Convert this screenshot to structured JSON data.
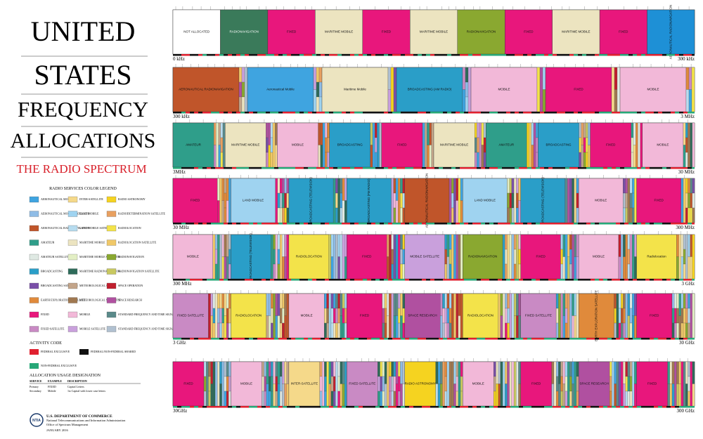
{
  "title_lines": [
    "UNITED",
    "STATES",
    "FREQUENCY",
    "ALLOCATIONS"
  ],
  "subtitle": "THE RADIO SPECTRUM",
  "legend": {
    "title": "RADIO SERVICES COLOR LEGEND",
    "items": [
      {
        "label": "AERONAUTICAL MOBILE",
        "color": "#3fa4e0"
      },
      {
        "label": "AERONAUTICAL MOBILE SATELLITE",
        "color": "#8fbce6"
      },
      {
        "label": "AERONAUTICAL RADIONAVIGATION",
        "color": "#c0552a"
      },
      {
        "label": "AMATEUR",
        "color": "#2f9e8a"
      },
      {
        "label": "AMATEUR SATELLITE",
        "color": "#dfe9e3"
      },
      {
        "label": "BROADCASTING",
        "color": "#2a9ec8"
      },
      {
        "label": "BROADCASTING SATELLITE",
        "color": "#7a4fa8"
      },
      {
        "label": "EARTH EXPLORATION SATELLITE",
        "color": "#e08a3b"
      },
      {
        "label": "FIXED",
        "color": "#e8177c"
      },
      {
        "label": "FIXED SATELLITE",
        "color": "#c98ac4"
      },
      {
        "label": "INTER-SATELLITE",
        "color": "#f5d98a"
      },
      {
        "label": "LAND MOBILE",
        "color": "#9fd3f0"
      },
      {
        "label": "LAND MOBILE SATELLITE",
        "color": "#b7dcef"
      },
      {
        "label": "MARITIME MOBILE",
        "color": "#ece4c0"
      },
      {
        "label": "MARITIME MOBILE SATELLITE",
        "color": "#e3efc4"
      },
      {
        "label": "MARITIME RADIONAVIGATION",
        "color": "#2e6b5a"
      },
      {
        "label": "METEOROLOGICAL AIDS",
        "color": "#c3a58a"
      },
      {
        "label": "METEOROLOGICAL SATELLITE",
        "color": "#a07850"
      },
      {
        "label": "MOBILE",
        "color": "#f2b8d8"
      },
      {
        "label": "MOBILE SATELLITE",
        "color": "#c9a0dc"
      },
      {
        "label": "RADIO ASTRONOMY",
        "color": "#f5d320"
      },
      {
        "label": "RADIODETERMINATION SATELLITE",
        "color": "#e8a060"
      },
      {
        "label": "RADIOLOCATION",
        "color": "#f3e34a"
      },
      {
        "label": "RADIOLOCATION SATELLITE",
        "color": "#f0c868"
      },
      {
        "label": "RADIONAVIGATION",
        "color": "#8aa830"
      },
      {
        "label": "RADIONAVIGATION SATELLITE",
        "color": "#c8c860"
      },
      {
        "label": "SPACE OPERATION",
        "color": "#c01f2e"
      },
      {
        "label": "SPACE RESEARCH",
        "color": "#b050a0"
      },
      {
        "label": "STANDARD FREQUENCY AND TIME SIGNAL",
        "color": "#5a8a8a"
      },
      {
        "label": "STANDARD FREQUENCY AND TIME SIGNAL SATELLITE",
        "color": "#b0c0d0"
      }
    ]
  },
  "activity_code": {
    "title": "ACTIVITY CODE",
    "items": [
      {
        "label": "FEDERAL EXCLUSIVE",
        "color": "#e0202f"
      },
      {
        "label": "FEDERAL/NON-FEDERAL SHARED",
        "color": "#111111"
      },
      {
        "label": "NON-FEDERAL EXCLUSIVE",
        "color": "#27a878"
      }
    ]
  },
  "usage": {
    "title": "ALLOCATION USAGE DESIGNATION",
    "header": [
      "SERVICE",
      "EXAMPLE",
      "DESCRIPTION"
    ],
    "rows": [
      [
        "Primary",
        "FIXED",
        "Capital Letters"
      ],
      [
        "Secondary",
        "Mobile",
        "1st Capital with lower case letters"
      ]
    ]
  },
  "footer": {
    "logo": "NTIA",
    "lines": [
      "U.S. DEPARTMENT OF COMMERCE",
      "National Telecommunications and Information Administration",
      "Office of Spectrum Management"
    ],
    "date": "JANUARY 2016"
  },
  "bands": [
    {
      "start": "0 kHz",
      "end": "300 kHz",
      "blocks": [
        {
          "label": "NOT ALLOCATED",
          "color": "#ffffff"
        },
        {
          "label": "RADIONAVIGATION",
          "color": "#3a7a5a"
        },
        {
          "label": "FIXED",
          "color": "#e8177c"
        },
        {
          "label": "MARITIME MOBILE",
          "color": "#ece4c0"
        },
        {
          "label": "FIXED",
          "color": "#e8177c"
        },
        {
          "label": "MARITIME MOBILE",
          "color": "#ece4c0"
        },
        {
          "label": "RADIONAVIGATION",
          "color": "#8aa830"
        },
        {
          "label": "FIXED",
          "color": "#e8177c"
        },
        {
          "label": "MARITIME MOBILE",
          "color": "#ece4c0"
        },
        {
          "label": "FIXED",
          "color": "#e8177c"
        },
        {
          "label": "AERONAUTICAL RADIONAVIGATION",
          "color": "#1e90d6"
        }
      ]
    },
    {
      "start": "300 kHz",
      "end": "3 MHz",
      "blocks": [
        {
          "label": "AERONAUTICAL RADIONAVIGATION",
          "color": "#c0552a"
        },
        {
          "label": "Aeronautical Mobile",
          "color": "#3fa4e0"
        },
        {
          "label": "Maritime Mobile",
          "color": "#ece4c0"
        },
        {
          "label": "BROADCASTING (AM RADIO)",
          "color": "#2a9ec8"
        },
        {
          "label": "MOBILE",
          "color": "#f2b8d8"
        },
        {
          "label": "FIXED",
          "color": "#e8177c"
        },
        {
          "label": "MOBILE",
          "color": "#f2b8d8"
        }
      ]
    },
    {
      "start": "3MHz",
      "end": "30 MHz",
      "blocks": [
        {
          "label": "AMATEUR",
          "color": "#2f9e8a"
        },
        {
          "label": "MARITIME MOBILE",
          "color": "#ece4c0"
        },
        {
          "label": "MOBILE",
          "color": "#f2b8d8"
        },
        {
          "label": "BROADCASTING",
          "color": "#2a9ec8"
        },
        {
          "label": "FIXED",
          "color": "#e8177c"
        },
        {
          "label": "MARITIME MOBILE",
          "color": "#ece4c0"
        },
        {
          "label": "AMATEUR",
          "color": "#2f9e8a"
        },
        {
          "label": "BROADCASTING",
          "color": "#2a9ec8"
        },
        {
          "label": "FIXED",
          "color": "#e8177c"
        },
        {
          "label": "MOBILE",
          "color": "#f2b8d8"
        }
      ]
    },
    {
      "start": "30 MHz",
      "end": "300 MHz",
      "blocks": [
        {
          "label": "FIXED",
          "color": "#e8177c"
        },
        {
          "label": "LAND MOBILE",
          "color": "#9fd3f0"
        },
        {
          "label": "BROADCASTING (TELEVISION)",
          "color": "#2a9ec8"
        },
        {
          "label": "BROADCASTING (FM RADIO)",
          "color": "#2a9ec8"
        },
        {
          "label": "AERONAUTICAL RADIONAVIGATION",
          "color": "#c0552a"
        },
        {
          "label": "LAND MOBILE",
          "color": "#9fd3f0"
        },
        {
          "label": "BROADCASTING (TELEVISION)",
          "color": "#2a9ec8"
        },
        {
          "label": "MOBILE",
          "color": "#f2b8d8"
        },
        {
          "label": "FIXED",
          "color": "#e8177c"
        }
      ]
    },
    {
      "start": "300 MHz",
      "end": "3 GHz",
      "blocks": [
        {
          "label": "MOBILE",
          "color": "#f2b8d8"
        },
        {
          "label": "BROADCASTING (TELEVISION)",
          "color": "#2a9ec8"
        },
        {
          "label": "RADIOLOCATION",
          "color": "#f3e34a"
        },
        {
          "label": "FIXED",
          "color": "#e8177c"
        },
        {
          "label": "MOBILE SATELLITE",
          "color": "#c9a0dc"
        },
        {
          "label": "RADIONAVIGATION",
          "color": "#8aa830"
        },
        {
          "label": "FIXED",
          "color": "#e8177c"
        },
        {
          "label": "MOBILE",
          "color": "#f2b8d8"
        },
        {
          "label": "Radiolocation",
          "color": "#f3e34a"
        }
      ]
    },
    {
      "start": "3 GHz",
      "end": "30 GHz",
      "blocks": [
        {
          "label": "FIXED SATELLITE",
          "color": "#c98ac4"
        },
        {
          "label": "RADIOLOCATION",
          "color": "#f3e34a"
        },
        {
          "label": "MOBILE",
          "color": "#f2b8d8"
        },
        {
          "label": "FIXED",
          "color": "#e8177c"
        },
        {
          "label": "SPACE RESEARCH",
          "color": "#b050a0"
        },
        {
          "label": "RADIOLOCATION",
          "color": "#f3e34a"
        },
        {
          "label": "FIXED SATELLITE",
          "color": "#c98ac4"
        },
        {
          "label": "EARTH EXPLORATION SATELLITE",
          "color": "#e08a3b"
        },
        {
          "label": "FIXED",
          "color": "#e8177c"
        }
      ]
    },
    {
      "start": "30GHz",
      "end": "300 GHz",
      "blocks": [
        {
          "label": "FIXED",
          "color": "#e8177c"
        },
        {
          "label": "MOBILE",
          "color": "#f2b8d8"
        },
        {
          "label": "INTER-SATELLITE",
          "color": "#f5d98a"
        },
        {
          "label": "FIXED SATELLITE",
          "color": "#c98ac4"
        },
        {
          "label": "RADIO ASTRONOMY",
          "color": "#f5d320"
        },
        {
          "label": "MOBILE",
          "color": "#f2b8d8"
        },
        {
          "label": "FIXED",
          "color": "#e8177c"
        },
        {
          "label": "SPACE RESEARCH",
          "color": "#b050a0"
        },
        {
          "label": "FIXED",
          "color": "#e8177c"
        }
      ]
    }
  ]
}
